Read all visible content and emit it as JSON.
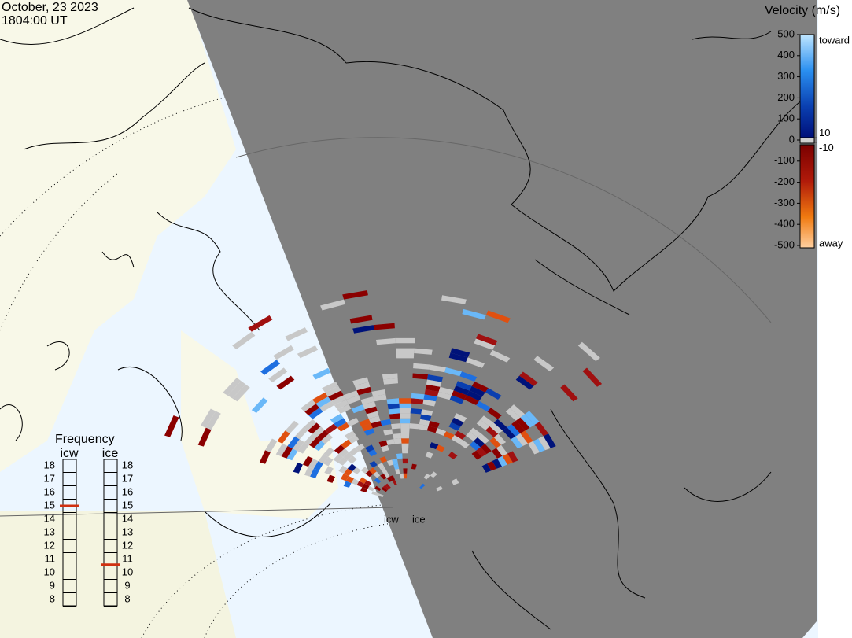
{
  "header": {
    "date": "October, 23 2023",
    "time": "1804:00 UT"
  },
  "velocity_scale": {
    "title": "Velocity (m/s)",
    "top_label": "toward",
    "bottom_label": "away",
    "ticks": [
      500,
      400,
      300,
      200,
      100,
      0,
      -100,
      -200,
      -300,
      -400,
      -500
    ],
    "inner_ticks": [
      10,
      -10
    ]
  },
  "frequency": {
    "title": "Frequency",
    "radars": [
      {
        "name": "icw",
        "ticks": [
          18,
          17,
          16,
          15,
          14,
          13,
          12,
          11,
          10,
          9,
          8
        ],
        "current": 15
      },
      {
        "name": "ice",
        "ticks": [
          18,
          17,
          16,
          15,
          14,
          13,
          12,
          11,
          10,
          9,
          8
        ],
        "current": 10.6
      }
    ]
  }
}
